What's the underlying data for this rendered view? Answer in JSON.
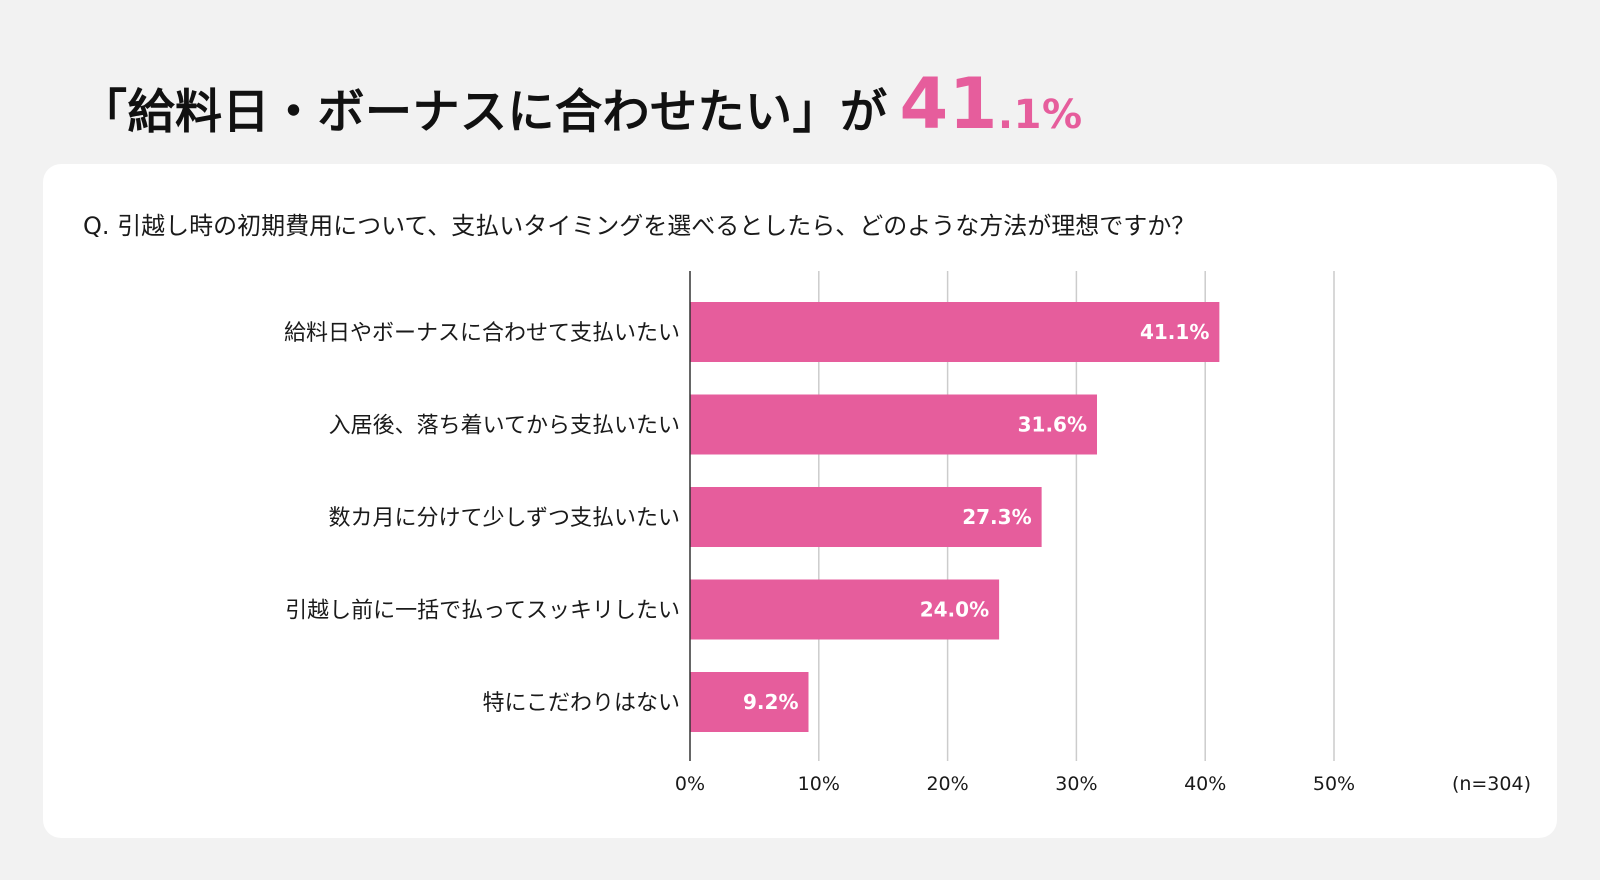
{
  "headline": {
    "text": "「給料日・ボーナスに合わせたい」が",
    "value_big": "41",
    "value_small": ".1%"
  },
  "question": "Q. 引越し時の初期費用について、支払いタイミングを選べるとしたら、どのような方法が理想ですか？",
  "colors": {
    "accent": "#e65d9c",
    "bar": "#e65d9c",
    "grid": "#cccccc",
    "background": "#f2f2f2",
    "card": "#ffffff"
  },
  "chart_data": {
    "type": "bar",
    "orientation": "horizontal",
    "categories": [
      "給料日やボーナスに合わせて支払いたい",
      "入居後、落ち着いてから支払いたい",
      "数カ月に分けて少しずつ支払いたい",
      "引越し前に一括で払ってスッキリしたい",
      "特にこだわりはない"
    ],
    "values": [
      41.1,
      31.6,
      27.3,
      24.0,
      9.2
    ],
    "value_labels": [
      "41.1%",
      "31.6%",
      "27.3%",
      "24.0%",
      "9.2%"
    ],
    "xlim": [
      0,
      50
    ],
    "ticks": [
      0,
      10,
      20,
      30,
      40,
      50
    ],
    "tick_labels": [
      "0%",
      "10%",
      "20%",
      "30%",
      "40%",
      "50%"
    ],
    "grid": true,
    "note": "(n=304)"
  }
}
